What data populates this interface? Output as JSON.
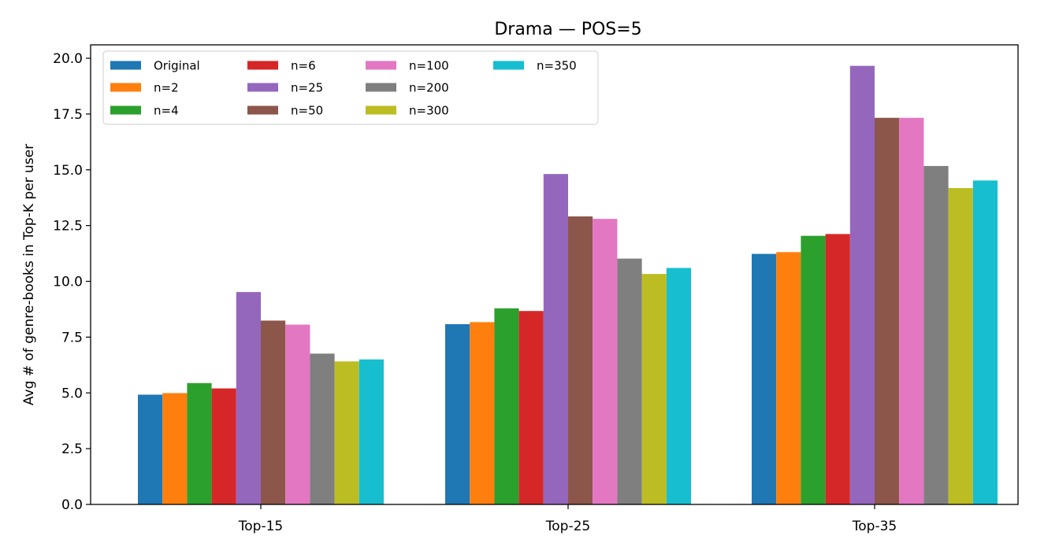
{
  "chart_data": {
    "type": "bar",
    "title": "Drama — POS=5",
    "xlabel": "",
    "ylabel": "Avg # of genre-books in Top-K per user",
    "categories": [
      "Top-15",
      "Top-25",
      "Top-35"
    ],
    "ylim": [
      0,
      20.6
    ],
    "yticks": [
      "0.0",
      "2.5",
      "5.0",
      "7.5",
      "10.0",
      "12.5",
      "15.0",
      "17.5",
      "20.0"
    ],
    "grid": false,
    "legend_position": "top-left",
    "series": [
      {
        "name": "Original",
        "color": "#1f77b4",
        "values": [
          4.92,
          8.08,
          11.23
        ]
      },
      {
        "name": "n=2",
        "color": "#ff7f0e",
        "values": [
          4.99,
          8.17,
          11.31
        ]
      },
      {
        "name": "n=4",
        "color": "#2ca02c",
        "values": [
          5.44,
          8.79,
          12.04
        ]
      },
      {
        "name": "n=6",
        "color": "#d62728",
        "values": [
          5.2,
          8.67,
          12.12
        ]
      },
      {
        "name": "n=25",
        "color": "#9467bd",
        "values": [
          9.52,
          14.81,
          19.66
        ]
      },
      {
        "name": "n=50",
        "color": "#8c564b",
        "values": [
          8.24,
          12.91,
          17.33
        ]
      },
      {
        "name": "n=100",
        "color": "#e377c2",
        "values": [
          8.06,
          12.8,
          17.33
        ]
      },
      {
        "name": "n=200",
        "color": "#7f7f7f",
        "values": [
          6.76,
          11.02,
          15.17
        ]
      },
      {
        "name": "n=300",
        "color": "#bcbd22",
        "values": [
          6.41,
          10.33,
          14.18
        ]
      },
      {
        "name": "n=350",
        "color": "#17becf",
        "values": [
          6.5,
          10.6,
          14.52
        ]
      }
    ]
  }
}
